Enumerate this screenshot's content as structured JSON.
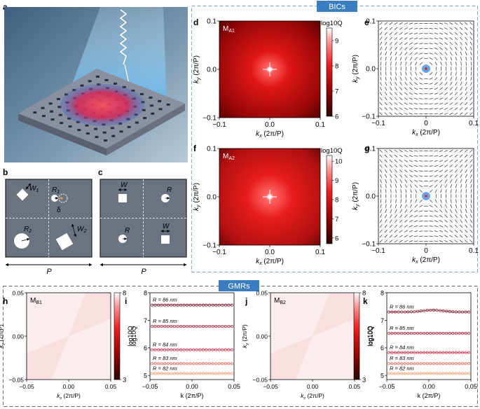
{
  "panel_letters": [
    "a",
    "b",
    "c",
    "d",
    "e",
    "f",
    "g",
    "h",
    "i",
    "j",
    "k"
  ],
  "sections": {
    "bics_label": "BICs",
    "gmrs_label": "GMRs"
  },
  "colors": {
    "bics_box": "#7a9fd1",
    "label_bg": "#3a7dc0",
    "gmrs_box": "#6a6a6a",
    "red_dark": "#3a0000",
    "red_bright": "#ff2020",
    "sample_grey": "#8a90a0"
  },
  "panel_b": {
    "w1": "W",
    "w1_sub": "1",
    "r1": "R",
    "r1_sub": "1",
    "delta": "δ",
    "r2": "R",
    "r2_sub": "2",
    "w2": "W",
    "w2_sub": "2",
    "period": "P"
  },
  "panel_c": {
    "w_top": "W",
    "r_top": "R",
    "r_bottom": "R",
    "w_bottom": "W",
    "period": "P"
  },
  "chart_data": [
    {
      "id": "d",
      "type": "heatmap",
      "title": "M",
      "title_sub": "A1",
      "xlabel": "k",
      "xlabel_sub": "x",
      "xlabel_unit": "(2π/P)",
      "ylabel": "k",
      "ylabel_sub": "y",
      "ylabel_unit": "(2π/P)",
      "xlim": [
        -0.1,
        0.1
      ],
      "ylim": [
        -0.1,
        0.1
      ],
      "xticks": [
        "−0.1",
        "0.0",
        "0.1"
      ],
      "yticks": [
        "0.1",
        "0.0",
        "−0.1"
      ],
      "colorbar": {
        "label": "log10Q",
        "ticks": [
          "9",
          "8",
          "7",
          "6"
        ],
        "range": [
          6,
          9.5
        ]
      }
    },
    {
      "id": "e",
      "type": "scatter",
      "description": "polarization vector field",
      "xlabel": "k",
      "xlabel_sub": "x",
      "xlabel_unit": "(2π/P)",
      "ylabel": "k",
      "ylabel_sub": "y",
      "ylabel_unit": "(2π/P)",
      "xlim": [
        -0.1,
        0.1
      ],
      "ylim": [
        -0.1,
        0.1
      ],
      "xticks": [
        "−0.1",
        "0",
        "0.1"
      ],
      "yticks": [
        "0.1",
        "0.0",
        "−0.1"
      ],
      "pattern": "vortex"
    },
    {
      "id": "f",
      "type": "heatmap",
      "title": "M",
      "title_sub": "A2",
      "xlabel": "k",
      "xlabel_sub": "x",
      "xlabel_unit": "(2π/P)",
      "ylabel": "k",
      "ylabel_sub": "y",
      "ylabel_unit": "(2π/P)",
      "xlim": [
        -0.1,
        0.1
      ],
      "ylim": [
        -0.1,
        0.1
      ],
      "xticks": [
        "−0.1",
        "0.0",
        "0.1"
      ],
      "yticks": [
        "0.1",
        "0.0",
        "−0.1"
      ],
      "colorbar": {
        "label": "log10Q",
        "ticks": [
          "10",
          "9",
          "8",
          "7",
          "6"
        ],
        "range": [
          5.7,
          10.3
        ]
      }
    },
    {
      "id": "g",
      "type": "scatter",
      "description": "polarization vector field",
      "xlabel": "k",
      "xlabel_sub": "x",
      "xlabel_unit": "(2π/P)",
      "ylabel": "k",
      "ylabel_sub": "y",
      "ylabel_unit": "(2π/P)",
      "xlim": [
        -0.1,
        0.1
      ],
      "ylim": [
        -0.1,
        0.1
      ],
      "xticks": [
        "−0.1",
        "0",
        "0.1"
      ],
      "yticks": [
        "0.1",
        "0.0",
        "−0.1"
      ],
      "pattern": "saddle"
    },
    {
      "id": "h",
      "type": "heatmap",
      "title": "M",
      "title_sub": "B1",
      "xlabel": "k",
      "xlabel_sub": "x",
      "xlabel_unit": "(2π/P)",
      "ylabel": "k",
      "ylabel_sub": "y",
      "ylabel_unit": "(2π/P)",
      "xlim": [
        -0.05,
        0.05
      ],
      "ylim": [
        -0.05,
        0.05
      ],
      "xticks": [
        "−0.05",
        "0.00",
        "0.05"
      ],
      "yticks": [
        "0.05",
        "0.00",
        "−0.05"
      ],
      "colorbar": {
        "label": "log10Q",
        "ticks": [
          "8",
          "3"
        ],
        "range": [
          3,
          8
        ]
      }
    },
    {
      "id": "i",
      "type": "line",
      "xlabel": "k (2π/P)",
      "ylabel": "log10Q",
      "xlim": [
        -0.05,
        0.05
      ],
      "ylim": [
        4.85,
        8.0
      ],
      "xticks": [
        "−0.05",
        "0.00",
        "0.05"
      ],
      "yticks": [
        "8",
        "7",
        "6",
        "5"
      ],
      "series": [
        {
          "name": "R = 86 nm",
          "value": 7.55,
          "color": "#7a1228"
        },
        {
          "name": "R = 85 nm",
          "value": 6.78,
          "color": "#a01e38"
        },
        {
          "name": "R = 84 nm",
          "value": 5.93,
          "color": "#c82a45"
        },
        {
          "name": "R = 83 nm",
          "value": 5.43,
          "color": "#e07060"
        },
        {
          "name": "R = 82 nm",
          "value": 5.07,
          "color": "#f0a070"
        }
      ]
    },
    {
      "id": "j",
      "type": "heatmap",
      "title": "M",
      "title_sub": "B2",
      "xlabel": "k",
      "xlabel_sub": "x",
      "xlabel_unit": "(2π/P)",
      "ylabel": "k",
      "ylabel_sub": "y",
      "ylabel_unit": "(2π/P)",
      "xlim": [
        -0.05,
        0.05
      ],
      "ylim": [
        -0.05,
        0.05
      ],
      "xticks": [
        "−0.05",
        "0.00",
        "0.05"
      ],
      "yticks": [
        "0.05",
        "0.00",
        "−0.05"
      ],
      "colorbar": {
        "label": "log10Q",
        "ticks": [
          "8",
          "3"
        ],
        "range": [
          3,
          8
        ]
      }
    },
    {
      "id": "k",
      "type": "line",
      "xlabel": "k (2π/P)",
      "ylabel": "log10Q",
      "xlim": [
        -0.05,
        0.05
      ],
      "ylim": [
        4.85,
        8.0
      ],
      "xticks": [
        "−0.05",
        "0.00",
        "0.05"
      ],
      "yticks": [
        "8",
        "7",
        "6",
        "5"
      ],
      "series": [
        {
          "name": "R = 86 nm",
          "value": 7.3,
          "bump": 0.07,
          "color": "#7a1228"
        },
        {
          "name": "R = 85 nm",
          "value": 6.53,
          "color": "#a01e38"
        },
        {
          "name": "R = 84 nm",
          "value": 5.83,
          "color": "#c82a45"
        },
        {
          "name": "R = 83 nm",
          "value": 5.43,
          "color": "#e07060"
        },
        {
          "name": "R = 82 nm",
          "value": 5.07,
          "color": "#f0a070"
        }
      ]
    }
  ]
}
